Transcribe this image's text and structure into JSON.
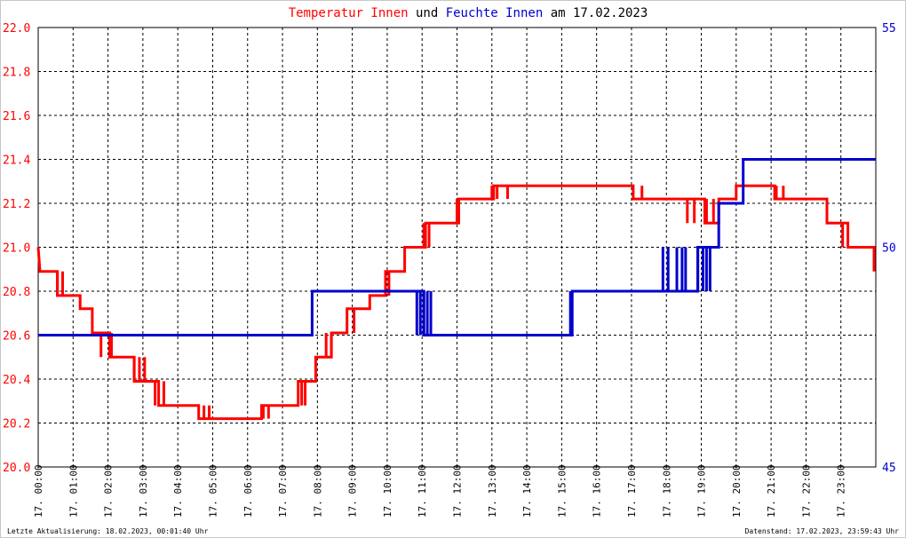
{
  "chart_data": {
    "type": "line",
    "title_parts": [
      {
        "text": "Temperatur Innen",
        "color": "#ff0000"
      },
      {
        "text": " und ",
        "color": "#000000"
      },
      {
        "text": "Feuchte Innen",
        "color": "#0000cc"
      },
      {
        "text": " am 17.02.2023",
        "color": "#000000"
      }
    ],
    "x_ticks": [
      "17. 00:00",
      "17. 01:00",
      "17. 02:00",
      "17. 03:00",
      "17. 04:00",
      "17. 05:00",
      "17. 06:00",
      "17. 07:00",
      "17. 08:00",
      "17. 09:00",
      "17. 10:00",
      "17. 11:00",
      "17. 12:00",
      "17. 13:00",
      "17. 14:00",
      "17. 15:00",
      "17. 16:00",
      "17. 17:00",
      "17. 18:00",
      "17. 19:00",
      "17. 20:00",
      "17. 21:00",
      "17. 22:00",
      "17. 23:00"
    ],
    "xlim": [
      0,
      24
    ],
    "y_left": {
      "min": 20.0,
      "max": 22.0,
      "ticks": [
        "20.0",
        "20.2",
        "20.4",
        "20.6",
        "20.8",
        "21.0",
        "21.2",
        "21.4",
        "21.6",
        "21.8",
        "22.0"
      ],
      "color": "#ff0000"
    },
    "y_right": {
      "min": 45,
      "max": 55,
      "ticks": [
        "45",
        "50",
        "55"
      ],
      "color": "#0000cc"
    },
    "grid": true,
    "series": [
      {
        "name": "Temperatur Innen",
        "axis": "left",
        "color": "#ff0000",
        "points": [
          [
            0.0,
            21.0
          ],
          [
            0.05,
            20.89
          ],
          [
            0.55,
            20.89
          ],
          [
            0.55,
            20.78
          ],
          [
            1.2,
            20.78
          ],
          [
            1.2,
            20.72
          ],
          [
            1.55,
            20.72
          ],
          [
            1.55,
            20.61
          ],
          [
            2.05,
            20.61
          ],
          [
            2.05,
            20.5
          ],
          [
            2.75,
            20.5
          ],
          [
            2.75,
            20.39
          ],
          [
            3.45,
            20.39
          ],
          [
            3.45,
            20.28
          ],
          [
            4.6,
            20.28
          ],
          [
            4.6,
            20.22
          ],
          [
            6.4,
            20.22
          ],
          [
            6.4,
            20.28
          ],
          [
            7.45,
            20.28
          ],
          [
            7.45,
            20.39
          ],
          [
            7.95,
            20.39
          ],
          [
            7.95,
            20.5
          ],
          [
            8.4,
            20.5
          ],
          [
            8.4,
            20.61
          ],
          [
            8.85,
            20.61
          ],
          [
            8.85,
            20.72
          ],
          [
            9.5,
            20.72
          ],
          [
            9.5,
            20.78
          ],
          [
            9.95,
            20.78
          ],
          [
            9.95,
            20.89
          ],
          [
            10.5,
            20.89
          ],
          [
            10.5,
            21.0
          ],
          [
            11.1,
            21.0
          ],
          [
            11.1,
            21.11
          ],
          [
            12.05,
            21.11
          ],
          [
            12.05,
            21.22
          ],
          [
            13.05,
            21.22
          ],
          [
            13.05,
            21.28
          ],
          [
            17.05,
            21.28
          ],
          [
            17.05,
            21.22
          ],
          [
            19.1,
            21.22
          ],
          [
            19.1,
            21.11
          ],
          [
            19.5,
            21.11
          ],
          [
            19.5,
            21.22
          ],
          [
            20.0,
            21.22
          ],
          [
            20.0,
            21.28
          ],
          [
            21.1,
            21.28
          ],
          [
            21.1,
            21.22
          ],
          [
            22.6,
            21.22
          ],
          [
            22.6,
            21.11
          ],
          [
            23.2,
            21.11
          ],
          [
            23.2,
            21.0
          ],
          [
            23.95,
            21.0
          ],
          [
            23.95,
            20.89
          ]
        ],
        "spikes": [
          [
            0.55,
            20.78,
            20.89
          ],
          [
            0.7,
            20.78,
            20.89
          ],
          [
            1.8,
            20.5,
            20.61
          ],
          [
            2.1,
            20.5,
            20.61
          ],
          [
            2.75,
            20.39,
            20.5
          ],
          [
            2.9,
            20.39,
            20.5
          ],
          [
            3.05,
            20.39,
            20.5
          ],
          [
            3.35,
            20.28,
            20.39
          ],
          [
            3.6,
            20.28,
            20.39
          ],
          [
            4.75,
            20.22,
            20.28
          ],
          [
            4.9,
            20.22,
            20.28
          ],
          [
            6.45,
            20.22,
            20.28
          ],
          [
            6.6,
            20.22,
            20.28
          ],
          [
            7.55,
            20.28,
            20.39
          ],
          [
            7.65,
            20.28,
            20.39
          ],
          [
            8.25,
            20.5,
            20.61
          ],
          [
            8.4,
            20.5,
            20.61
          ],
          [
            9.05,
            20.61,
            20.72
          ],
          [
            10.05,
            20.78,
            20.89
          ],
          [
            11.05,
            21.0,
            21.11
          ],
          [
            11.2,
            21.0,
            21.11
          ],
          [
            12.0,
            21.11,
            21.22
          ],
          [
            13.0,
            21.22,
            21.28
          ],
          [
            13.15,
            21.22,
            21.28
          ],
          [
            13.45,
            21.22,
            21.28
          ],
          [
            17.3,
            21.22,
            21.28
          ],
          [
            18.6,
            21.11,
            21.22
          ],
          [
            18.8,
            21.11,
            21.22
          ],
          [
            19.15,
            21.11,
            21.22
          ],
          [
            19.35,
            21.11,
            21.22
          ],
          [
            21.15,
            21.22,
            21.28
          ],
          [
            21.35,
            21.22,
            21.28
          ],
          [
            23.05,
            21.0,
            21.11
          ]
        ]
      },
      {
        "name": "Feuchte Innen",
        "axis": "right",
        "color": "#0000cc",
        "points": [
          [
            0.0,
            48.0
          ],
          [
            7.85,
            48.0
          ],
          [
            7.85,
            49.0
          ],
          [
            11.05,
            49.0
          ],
          [
            11.05,
            48.0
          ],
          [
            15.3,
            48.0
          ],
          [
            15.3,
            49.0
          ],
          [
            18.9,
            49.0
          ],
          [
            18.9,
            50.0
          ],
          [
            19.5,
            50.0
          ],
          [
            19.5,
            51.0
          ],
          [
            20.2,
            51.0
          ],
          [
            20.2,
            52.0
          ],
          [
            24.0,
            52.0
          ]
        ],
        "spikes": [
          [
            10.85,
            48.0,
            49.0
          ],
          [
            10.95,
            48.0,
            49.0
          ],
          [
            11.05,
            48.0,
            49.0
          ],
          [
            11.15,
            48.0,
            49.0
          ],
          [
            11.25,
            48.0,
            49.0
          ],
          [
            15.25,
            48.0,
            49.0
          ],
          [
            17.9,
            49.0,
            50.0
          ],
          [
            18.05,
            49.0,
            50.0
          ],
          [
            18.3,
            49.0,
            50.0
          ],
          [
            18.45,
            49.0,
            50.0
          ],
          [
            18.55,
            49.0,
            50.0
          ],
          [
            18.9,
            49.0,
            50.0
          ],
          [
            19.05,
            49.0,
            50.0
          ],
          [
            19.15,
            49.0,
            50.0
          ],
          [
            19.25,
            49.0,
            50.0
          ]
        ]
      }
    ],
    "footer_left": "Letzte Aktualisierung: 18.02.2023, 00:01:40 Uhr",
    "footer_right": "Datenstand: 17.02.2023, 23:59:43 Uhr"
  }
}
